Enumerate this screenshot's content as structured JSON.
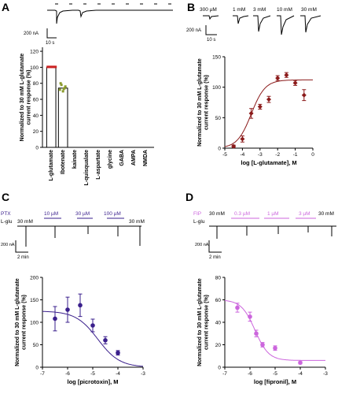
{
  "panel_letters": [
    "A",
    "B",
    "C",
    "D"
  ],
  "colors": {
    "dark_red": "#8b1a1a",
    "navy": "#3a1f8c",
    "magenta": "#cc66dd",
    "olive": "#8a9a2c",
    "red": "#cc2222"
  },
  "panel_a": {
    "scale_y": "200 nA",
    "scale_x": "10 s"
  },
  "panel_b": {
    "trace_labels": [
      "300 µM",
      "1 mM",
      "3 mM",
      "10 mM",
      "30 mM"
    ],
    "scale_y": "200 nA",
    "scale_x": "10 s"
  },
  "panel_c": {
    "drug_label": "PTX",
    "agonist_label": "L-glu",
    "conc_labels": [
      "10 µM",
      "30 µM",
      "100 µM"
    ],
    "glu_30mM": "30 mM",
    "scale_y": "200 nA",
    "scale_x": "2 min"
  },
  "panel_d": {
    "drug_label": "FIP",
    "agonist_label": "L-glu",
    "conc_labels": [
      "0.3 µM",
      "1 µM",
      "3 µM"
    ],
    "glu_30mM": "30 mM",
    "scale_y": "200 nA",
    "scale_x": "2 min"
  },
  "chart_data": [
    {
      "panel": "A",
      "type": "bar",
      "ylabel": "Normalized to 30 mM L-glutamate current response (%)",
      "categories": [
        "L-glutamate",
        "Ibotenate",
        "kainate",
        "L-quisqualate",
        "L-aspartate",
        "glycine",
        "GABA",
        "AMPA",
        "NMDA"
      ],
      "values": [
        100,
        74,
        0,
        0,
        0,
        0,
        0,
        0,
        0
      ],
      "ylim": [
        0,
        125
      ],
      "yticks": [
        0,
        20,
        40,
        60,
        80,
        100,
        120
      ],
      "point_colors": [
        "#cc2222",
        "#8a9a2c"
      ]
    },
    {
      "panel": "B",
      "type": "scatter",
      "xlabel": "log [L-glutamate], M",
      "ylabel": "Normalized to 30 mM L-glutamate current response (%)",
      "x": [
        -4.5,
        -4.0,
        -3.5,
        -3.0,
        -2.5,
        -2.0,
        -1.5,
        -1.0,
        -0.5
      ],
      "y": [
        3,
        15,
        57,
        68,
        80,
        115,
        120,
        107,
        87
      ],
      "err": [
        2,
        5,
        8,
        4,
        5,
        4,
        4,
        4,
        9
      ],
      "fit": {
        "bottom": 0,
        "top": 112,
        "logEC50": -3.5,
        "hill": 1.1
      },
      "xlim": [
        -5,
        0
      ],
      "ylim": [
        0,
        150
      ],
      "xticks": [
        -5,
        -4,
        -3,
        -2,
        -1,
        0
      ],
      "yticks": [
        0,
        50,
        100,
        150
      ]
    },
    {
      "panel": "C",
      "type": "scatter",
      "xlabel": "log [picrotoxin], M",
      "ylabel": "Normalized to 30 mM L-glutamate current response (%)",
      "x": [
        -6.5,
        -6.0,
        -5.5,
        -5.0,
        -4.5,
        -4.0
      ],
      "y": [
        108,
        128,
        138,
        93,
        60,
        32
      ],
      "err": [
        27,
        28,
        25,
        14,
        8,
        5
      ],
      "fit": {
        "bottom": 0,
        "top": 125,
        "logIC50": -4.8,
        "hill": -1.0
      },
      "xlim": [
        -7,
        -3
      ],
      "ylim": [
        0,
        200
      ],
      "xticks": [
        -7,
        -6,
        -5,
        -4,
        -3
      ],
      "yticks": [
        0,
        50,
        100,
        150,
        200
      ]
    },
    {
      "panel": "D",
      "type": "scatter",
      "xlabel": "log [fipronil], M",
      "ylabel": "Normalized to 30 mM L-glutamate current response (%)",
      "x": [
        -6.5,
        -6.0,
        -5.75,
        -5.5,
        -5.0,
        -4.0
      ],
      "y": [
        53,
        45,
        30,
        20,
        17,
        4
      ],
      "err": [
        4,
        4,
        3,
        2,
        2,
        1
      ],
      "fit": {
        "bottom": 6,
        "top": 60,
        "logIC50": -5.8,
        "hill": -1.6
      },
      "xlim": [
        -7,
        -3
      ],
      "ylim": [
        0,
        80
      ],
      "xticks": [
        -7,
        -6,
        -5,
        -4,
        -3
      ],
      "yticks": [
        0,
        20,
        40,
        60,
        80
      ]
    }
  ]
}
